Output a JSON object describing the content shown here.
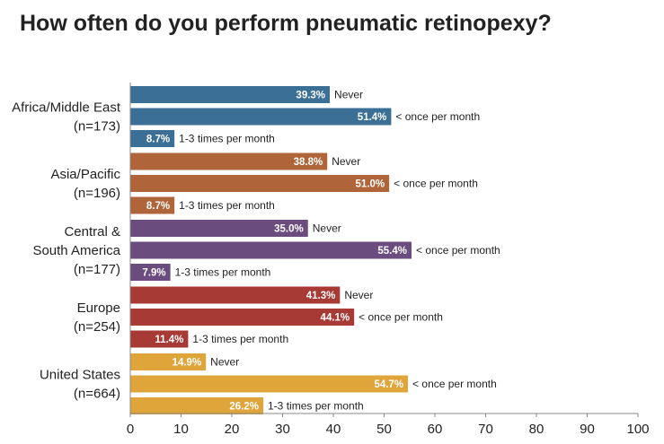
{
  "chart_data": {
    "type": "bar",
    "orientation": "horizontal",
    "title": "How often do you perform pneumatic retinopexy?",
    "xlim": [
      0,
      100
    ],
    "x_ticks": [
      0,
      10,
      20,
      30,
      40,
      50,
      60,
      70,
      80,
      90,
      100
    ],
    "grid": false,
    "groups": [
      {
        "label": [
          "Africa/Middle East",
          "(n=173)"
        ],
        "color": "#3b6f96",
        "bars": [
          {
            "category": "Never",
            "value": 39.3,
            "value_label": "39.3%"
          },
          {
            "category": "< once per month",
            "value": 51.4,
            "value_label": "51.4%"
          },
          {
            "category": "1-3 times per month",
            "value": 8.7,
            "value_label": "8.7%"
          }
        ]
      },
      {
        "label": [
          "Asia/Pacific",
          "(n=196)"
        ],
        "color": "#b0643a",
        "bars": [
          {
            "category": "Never",
            "value": 38.8,
            "value_label": "38.8%"
          },
          {
            "category": "< once per month",
            "value": 51.0,
            "value_label": "51.0%"
          },
          {
            "category": "1-3 times per month",
            "value": 8.7,
            "value_label": "8.7%"
          }
        ]
      },
      {
        "label": [
          "Central &",
          "South America",
          "(n=177)"
        ],
        "color": "#6b4c7e",
        "bars": [
          {
            "category": "Never",
            "value": 35.0,
            "value_label": "35.0%"
          },
          {
            "category": "< once per month",
            "value": 55.4,
            "value_label": "55.4%"
          },
          {
            "category": "1-3 times per month",
            "value": 7.9,
            "value_label": "7.9%"
          }
        ]
      },
      {
        "label": [
          "Europe",
          "(n=254)"
        ],
        "color": "#a83a35",
        "bars": [
          {
            "category": "Never",
            "value": 41.3,
            "value_label": "41.3%"
          },
          {
            "category": "< once per month",
            "value": 44.1,
            "value_label": "44.1%"
          },
          {
            "category": "1-3 times per month",
            "value": 11.4,
            "value_label": "11.4%"
          }
        ]
      },
      {
        "label": [
          "United States",
          "(n=664)"
        ],
        "color": "#dfa43a",
        "bars": [
          {
            "category": "Never",
            "value": 14.9,
            "value_label": "14.9%"
          },
          {
            "category": "< once per month",
            "value": 54.7,
            "value_label": "54.7%"
          },
          {
            "category": "1-3 times per month",
            "value": 26.2,
            "value_label": "26.2%"
          }
        ]
      }
    ]
  }
}
